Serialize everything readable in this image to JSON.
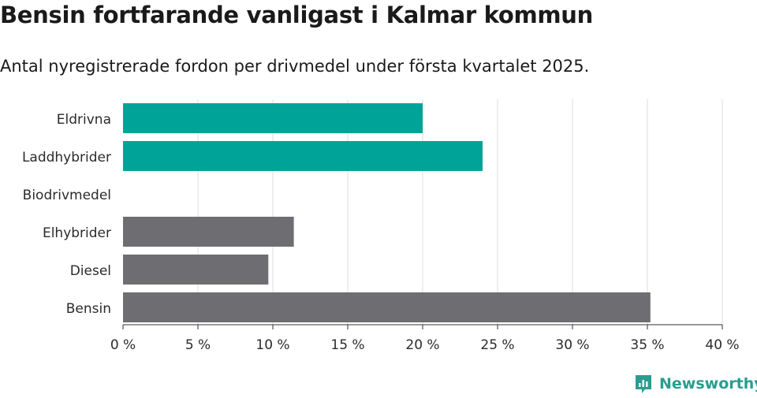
{
  "header": {
    "title": "Bensin fortfarande vanligast i Kalmar kommun",
    "subtitle": "Antal nyregistrerade fordon per drivmedel under första kvartalet 2025."
  },
  "brand": {
    "name": "Newsworthy",
    "color": "#2a9d8f"
  },
  "chart_data": {
    "type": "bar",
    "orientation": "horizontal",
    "categories": [
      "Eldrivna",
      "Laddhybrider",
      "Biodrivmedel",
      "Elhybrider",
      "Diesel",
      "Bensin"
    ],
    "values": [
      20.0,
      24.0,
      0,
      11.4,
      9.7,
      35.2
    ],
    "bar_colors": [
      "#00a398",
      "#00a398",
      "#00a398",
      "#6e6d72",
      "#6e6d72",
      "#6e6d72"
    ],
    "xlim": [
      0,
      40
    ],
    "x_ticks": [
      0,
      5,
      10,
      15,
      20,
      25,
      30,
      35,
      40
    ],
    "x_tick_labels": [
      "0 %",
      "5 %",
      "10 %",
      "15 %",
      "20 %",
      "25 %",
      "30 %",
      "35 %",
      "40 %"
    ],
    "grid": "vertical"
  }
}
